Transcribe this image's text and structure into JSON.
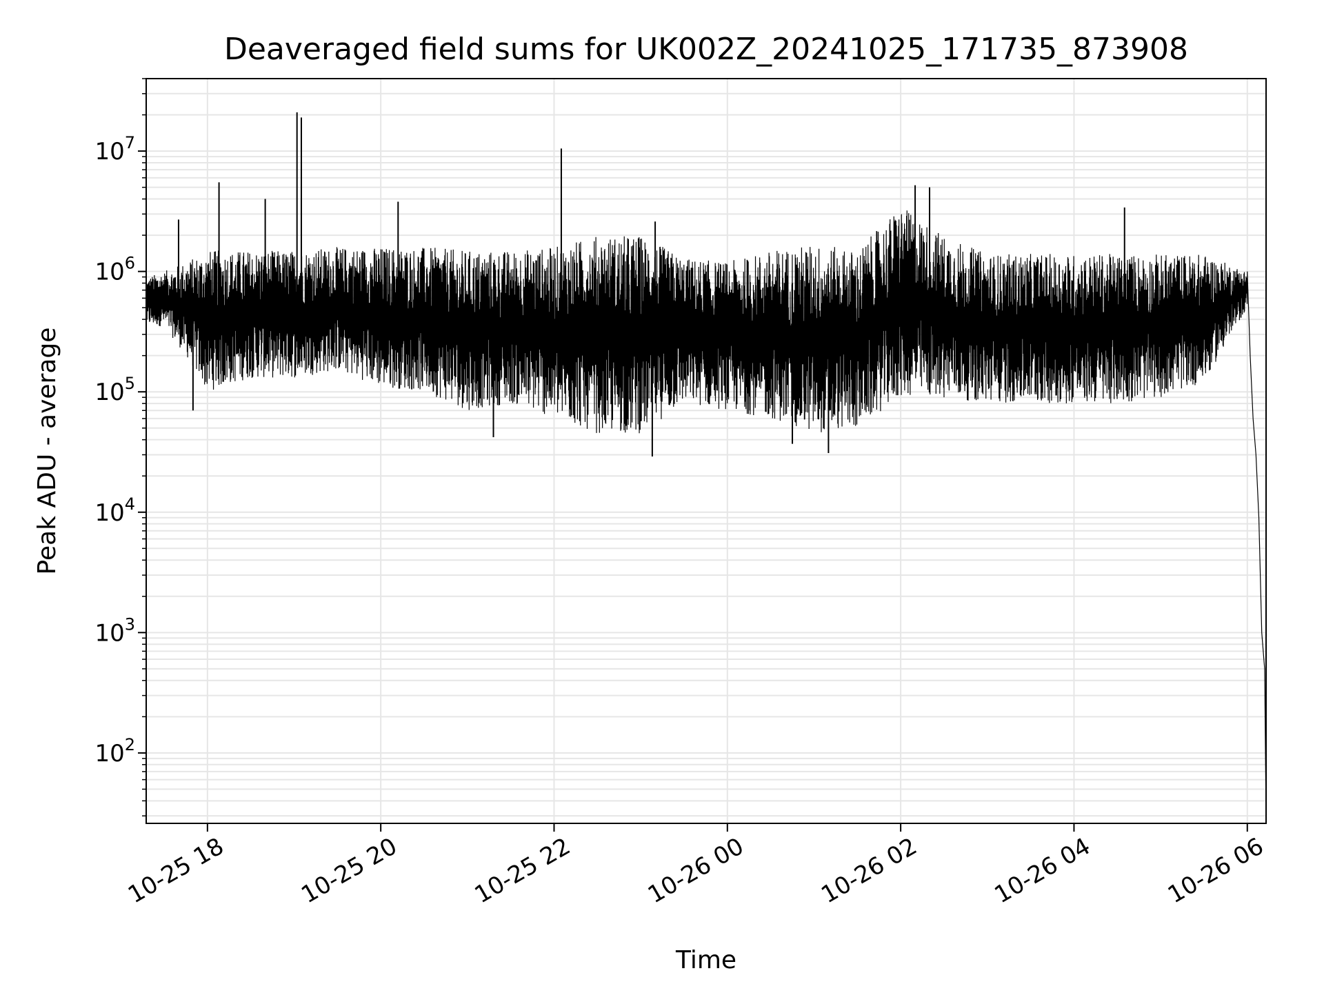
{
  "chart_data": {
    "type": "line",
    "title": "Deaveraged field sums for UK002Z_20241025_171735_873908",
    "xlabel": "Time",
    "ylabel": "Peak ADU - average",
    "x_axis": {
      "scale": "time",
      "range": [
        "2024-10-25 17:17:35",
        "2024-10-26 06:13:00"
      ],
      "ticks": [
        {
          "time": "2024-10-25 18:00",
          "label": "10-25 18"
        },
        {
          "time": "2024-10-25 20:00",
          "label": "10-25 20"
        },
        {
          "time": "2024-10-25 22:00",
          "label": "10-25 22"
        },
        {
          "time": "2024-10-26 00:00",
          "label": "10-26 00"
        },
        {
          "time": "2024-10-26 02:00",
          "label": "10-26 02"
        },
        {
          "time": "2024-10-26 04:00",
          "label": "10-26 04"
        },
        {
          "time": "2024-10-26 06:00",
          "label": "10-26 06"
        }
      ]
    },
    "y_axis": {
      "scale": "log",
      "range": [
        26,
        40000000
      ],
      "ticks": [
        {
          "value": 100,
          "base": "10",
          "exp": "2"
        },
        {
          "value": 1000,
          "base": "10",
          "exp": "3"
        },
        {
          "value": 10000,
          "base": "10",
          "exp": "4"
        },
        {
          "value": 100000,
          "base": "10",
          "exp": "5"
        },
        {
          "value": 1000000,
          "base": "10",
          "exp": "6"
        },
        {
          "value": 10000000,
          "base": "10",
          "exp": "7"
        }
      ]
    },
    "grid": true,
    "legend": "none",
    "line_color": "#000000",
    "grid_color": "#e6e6e6",
    "envelope": [
      {
        "t": "2024-10-25 17:18",
        "low": 350000,
        "high": 900000
      },
      {
        "t": "2024-10-25 17:30",
        "low": 350000,
        "high": 1000000
      },
      {
        "t": "2024-10-25 17:45",
        "low": 200000,
        "high": 1200000
      },
      {
        "t": "2024-10-25 18:00",
        "low": 100000,
        "high": 1500000
      },
      {
        "t": "2024-10-25 18:30",
        "low": 130000,
        "high": 1500000
      },
      {
        "t": "2024-10-25 19:00",
        "low": 130000,
        "high": 1500000
      },
      {
        "t": "2024-10-25 19:30",
        "low": 150000,
        "high": 1600000
      },
      {
        "t": "2024-10-25 20:00",
        "low": 110000,
        "high": 1600000
      },
      {
        "t": "2024-10-25 20:30",
        "low": 100000,
        "high": 1600000
      },
      {
        "t": "2024-10-25 21:00",
        "low": 70000,
        "high": 1500000
      },
      {
        "t": "2024-10-25 21:30",
        "low": 80000,
        "high": 1500000
      },
      {
        "t": "2024-10-25 22:00",
        "low": 60000,
        "high": 1600000
      },
      {
        "t": "2024-10-25 22:30",
        "low": 45000,
        "high": 2000000
      },
      {
        "t": "2024-10-25 23:00",
        "low": 45000,
        "high": 2000000
      },
      {
        "t": "2024-10-25 23:30",
        "low": 80000,
        "high": 1300000
      },
      {
        "t": "2024-10-26 00:00",
        "low": 70000,
        "high": 1200000
      },
      {
        "t": "2024-10-26 00:30",
        "low": 60000,
        "high": 1500000
      },
      {
        "t": "2024-10-26 01:00",
        "low": 45000,
        "high": 1700000
      },
      {
        "t": "2024-10-26 01:30",
        "low": 50000,
        "high": 1500000
      },
      {
        "t": "2024-10-26 02:00",
        "low": 90000,
        "high": 3500000
      },
      {
        "t": "2024-10-26 02:30",
        "low": 90000,
        "high": 2000000
      },
      {
        "t": "2024-10-26 03:00",
        "low": 80000,
        "high": 1400000
      },
      {
        "t": "2024-10-26 03:30",
        "low": 80000,
        "high": 1400000
      },
      {
        "t": "2024-10-26 04:00",
        "low": 80000,
        "high": 1400000
      },
      {
        "t": "2024-10-26 04:30",
        "low": 80000,
        "high": 1400000
      },
      {
        "t": "2024-10-26 05:00",
        "low": 90000,
        "high": 1400000
      },
      {
        "t": "2024-10-26 05:30",
        "low": 120000,
        "high": 1400000
      },
      {
        "t": "2024-10-26 06:00",
        "low": 500000,
        "high": 1000000
      }
    ],
    "tail": [
      {
        "t": "2024-10-26 06:00",
        "value": 1000000
      },
      {
        "t": "2024-10-26 06:02",
        "value": 200000
      },
      {
        "t": "2024-10-26 06:04",
        "value": 60000
      },
      {
        "t": "2024-10-26 06:06",
        "value": 30000
      },
      {
        "t": "2024-10-26 06:08",
        "value": 9000
      },
      {
        "t": "2024-10-26 06:10",
        "value": 1000
      },
      {
        "t": "2024-10-26 06:12",
        "value": 500
      },
      {
        "t": "2024-10-26 06:13",
        "value": 30
      }
    ],
    "spikes": [
      {
        "t": "2024-10-25 17:40",
        "value": 2700000
      },
      {
        "t": "2024-10-25 18:08",
        "value": 5500000
      },
      {
        "t": "2024-10-25 18:40",
        "value": 4000000
      },
      {
        "t": "2024-10-25 19:02",
        "value": 21000000
      },
      {
        "t": "2024-10-25 19:05",
        "value": 19000000
      },
      {
        "t": "2024-10-25 20:12",
        "value": 3800000
      },
      {
        "t": "2024-10-25 22:05",
        "value": 10500000
      },
      {
        "t": "2024-10-25 23:10",
        "value": 2600000
      },
      {
        "t": "2024-10-26 02:10",
        "value": 5200000
      },
      {
        "t": "2024-10-26 02:20",
        "value": 5000000
      },
      {
        "t": "2024-10-26 04:35",
        "value": 3400000
      }
    ],
    "dips": [
      {
        "t": "2024-10-25 17:50",
        "value": 70000
      },
      {
        "t": "2024-10-25 21:18",
        "value": 42000
      },
      {
        "t": "2024-10-25 23:08",
        "value": 29000
      },
      {
        "t": "2024-10-26 00:45",
        "value": 37000
      },
      {
        "t": "2024-10-26 01:10",
        "value": 31000
      }
    ]
  }
}
